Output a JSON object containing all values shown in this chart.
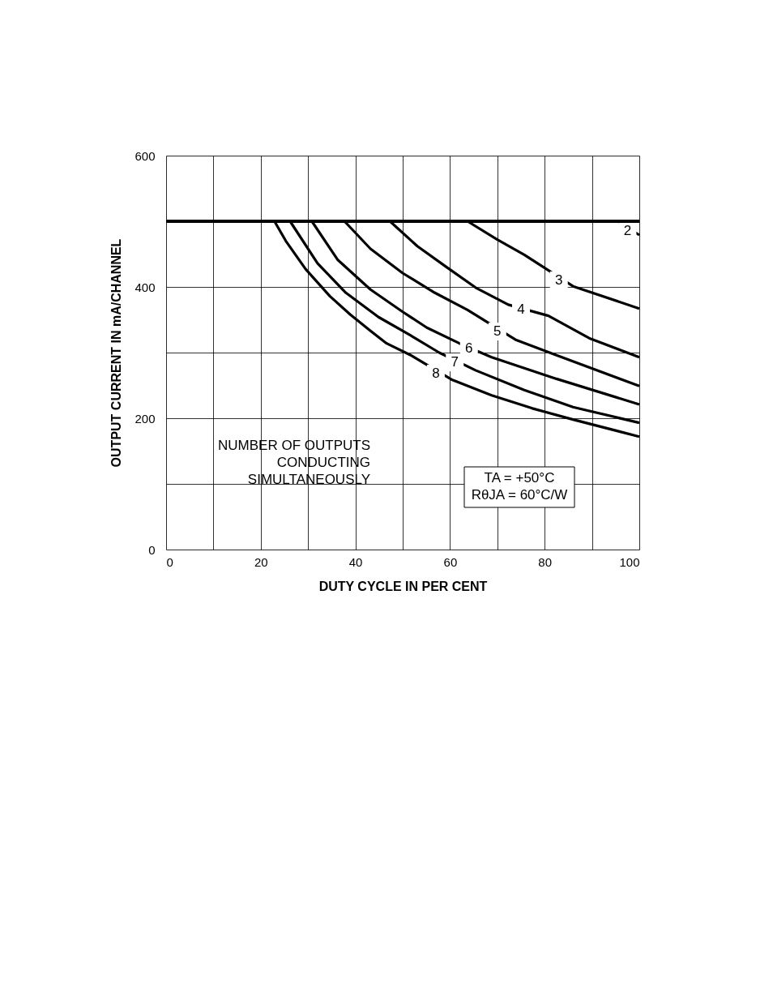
{
  "chart_data": {
    "type": "line",
    "xlabel": "DUTY CYCLE IN PER CENT",
    "ylabel": "OUTPUT CURRENT IN mA/CHANNEL",
    "xlim": [
      0,
      100
    ],
    "ylim": [
      0,
      600
    ],
    "xticks": [
      0,
      {
        "value": 10,
        "label": null
      },
      20,
      {
        "value": 30,
        "label": null
      },
      40,
      {
        "value": 50,
        "label": null
      },
      60,
      {
        "value": 70,
        "label": null
      },
      80,
      {
        "value": 90,
        "label": null
      },
      100
    ],
    "yticks": [
      0,
      {
        "value": 100,
        "label": null
      },
      200,
      {
        "value": 300,
        "label": null
      },
      400,
      {
        "value": 500,
        "label": null
      },
      600
    ],
    "grid": true,
    "legend": false,
    "marker": "none",
    "line_style": "solid",
    "ref_lines": [
      {
        "axis": "y",
        "value": 500,
        "color": "#000000"
      }
    ],
    "series": [
      {
        "color": "#000000",
        "x": [
          95.5,
          100
        ],
        "values": [
          500,
          479
        ]
      },
      {
        "color": "#000000",
        "x": [
          63.7,
          70,
          75.7,
          86,
          100
        ],
        "values": [
          500,
          472,
          449,
          401,
          367
        ]
      },
      {
        "color": "#000000",
        "x": [
          47.3,
          53.1,
          59.1,
          65.4,
          72.3,
          80.8,
          89.4,
          100
        ],
        "values": [
          500,
          462,
          431,
          399,
          373,
          356,
          322,
          293
        ]
      },
      {
        "color": "#000000",
        "x": [
          37.7,
          43.2,
          50,
          56.8,
          63.7,
          74,
          82.5,
          100
        ],
        "values": [
          500,
          458,
          421,
          391,
          365,
          319,
          296,
          249
        ]
      },
      {
        "color": "#000000",
        "x": [
          30.8,
          36.3,
          43.2,
          50,
          55.1,
          62,
          68.8,
          82.5,
          100
        ],
        "values": [
          500,
          441,
          396,
          362,
          338,
          314,
          293,
          260,
          221
        ]
      },
      {
        "color": "#000000",
        "x": [
          26.2,
          32,
          38,
          44.9,
          51.7,
          57.7,
          65.4,
          75.7,
          86,
          100
        ],
        "values": [
          500,
          436,
          391,
          354,
          326,
          300,
          273,
          243,
          217,
          193
        ]
      },
      {
        "color": "#000000",
        "x": [
          22.9,
          25.3,
          29.5,
          34.6,
          38.9,
          43.2,
          46.6,
          51.7,
          60.3,
          68.8,
          77.4,
          86,
          100
        ],
        "values": [
          500,
          470,
          427,
          386,
          358,
          333,
          314,
          296,
          259,
          235,
          215,
          198,
          172
        ]
      }
    ],
    "annotations": [
      {
        "text": "2",
        "x": 97.5,
        "y": 485
      },
      {
        "text": "3",
        "x": 83,
        "y": 410
      },
      {
        "text": "4",
        "x": 75,
        "y": 366
      },
      {
        "text": "5",
        "x": 70,
        "y": 332
      },
      {
        "text": "6",
        "x": 64,
        "y": 306
      },
      {
        "text": "7",
        "x": 61,
        "y": 285
      },
      {
        "text": "8",
        "x": 57,
        "y": 268
      },
      "NUMBER OF OUTPUTS\nCONDUCTING\nSIMULTANEOUSLY",
      "TA = +50°C\nRθJA = 60°C/W"
    ]
  }
}
